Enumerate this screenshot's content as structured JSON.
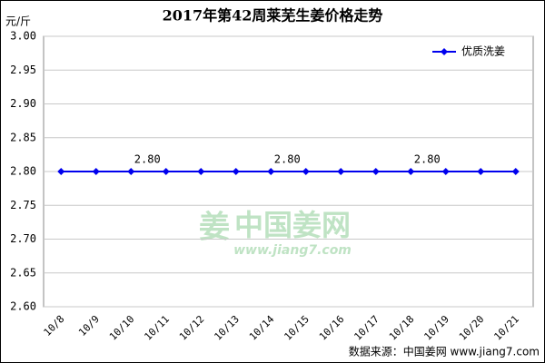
{
  "chart_data": {
    "type": "line",
    "title": "2017年第42周莱芜生姜价格走势",
    "y_label": "元/斤",
    "categories": [
      "10/8",
      "10/9",
      "10/10",
      "10/11",
      "10/12",
      "10/13",
      "10/14",
      "10/15",
      "10/16",
      "10/17",
      "10/18",
      "10/19",
      "10/20",
      "10/21"
    ],
    "series": [
      {
        "name": "优质洗姜",
        "color": "#0000ee",
        "values": [
          2.8,
          2.8,
          2.8,
          2.8,
          2.8,
          2.8,
          2.8,
          2.8,
          2.8,
          2.8,
          2.8,
          2.8,
          2.8,
          2.8
        ],
        "value_labels": [
          null,
          null,
          "2.80",
          null,
          null,
          null,
          "2.80",
          null,
          null,
          null,
          "2.80",
          null,
          null,
          null
        ]
      }
    ],
    "ylim": [
      2.6,
      3.0
    ],
    "yticks": [
      {
        "value": 2.6,
        "label": "2.60"
      },
      {
        "value": 2.65,
        "label": "2.65"
      },
      {
        "value": 2.7,
        "label": "2.70"
      },
      {
        "value": 2.75,
        "label": "2.75"
      },
      {
        "value": 2.8,
        "label": "2.80"
      },
      {
        "value": 2.85,
        "label": "2.85"
      },
      {
        "value": 2.9,
        "label": "2.90"
      },
      {
        "value": 2.95,
        "label": "2.95"
      },
      {
        "value": 3.0,
        "label": "3.00"
      }
    ],
    "grid": true,
    "legend": "top-right",
    "watermark": {
      "logo": "姜",
      "name": "中国姜网",
      "url": "www.jiang7.com"
    },
    "source": "数据来源：中国姜网 www.jiang7.com"
  }
}
